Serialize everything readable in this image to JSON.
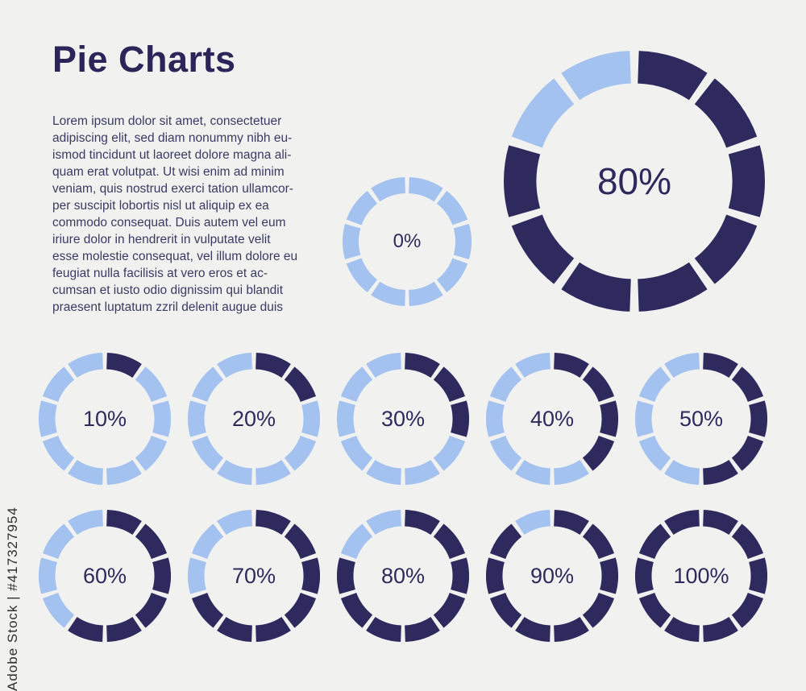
{
  "page": {
    "title": "Pie Charts",
    "paragraph": "Lorem ipsum dolor sit amet, consectetuer\nadipiscing elit, sed diam nonummy nibh eu-\nismod tincidunt ut laoreet dolore magna ali-\nquam erat volutpat. Ut wisi enim ad minim\nveniam, quis nostrud exerci tation ullamcor-\nper suscipit lobortis nisl ut aliquip ex ea\ncommodo consequat. Duis autem vel eum\niriure dolor in hendrerit in vulputate velit\nesse molestie consequat, vel illum dolore eu\nfeugiat nulla facilisis at vero eros et ac-\ncumsan et iusto odio dignissim qui blandit\npraesent luptatum zzril delenit augue duis",
    "watermark": "Adobe Stock | #417327954",
    "background": "#f1f1ef"
  },
  "chart_data": {
    "type": "pie",
    "subtype": "segmented-donut-progress",
    "title": "Pie Charts",
    "segments_per_ring": 10,
    "gap_degrees": 4,
    "legend": "none",
    "colors": {
      "filled": "#2e2a5e",
      "empty": "#a3c2f0",
      "label": "#2e2a5e"
    },
    "charts": [
      {
        "id": "donut-0",
        "label": "0%",
        "value": 0,
        "size": "medium"
      },
      {
        "id": "donut-80-large",
        "label": "80%",
        "value": 80,
        "size": "large"
      },
      {
        "id": "donut-10",
        "label": "10%",
        "value": 10,
        "size": "small"
      },
      {
        "id": "donut-20",
        "label": "20%",
        "value": 20,
        "size": "small"
      },
      {
        "id": "donut-30",
        "label": "30%",
        "value": 30,
        "size": "small"
      },
      {
        "id": "donut-40",
        "label": "40%",
        "value": 40,
        "size": "small"
      },
      {
        "id": "donut-50",
        "label": "50%",
        "value": 50,
        "size": "small"
      },
      {
        "id": "donut-60",
        "label": "60%",
        "value": 60,
        "size": "small"
      },
      {
        "id": "donut-70",
        "label": "70%",
        "value": 70,
        "size": "small"
      },
      {
        "id": "donut-80",
        "label": "80%",
        "value": 80,
        "size": "small"
      },
      {
        "id": "donut-90",
        "label": "90%",
        "value": 90,
        "size": "small"
      },
      {
        "id": "donut-100",
        "label": "100%",
        "value": 100,
        "size": "small"
      }
    ]
  }
}
